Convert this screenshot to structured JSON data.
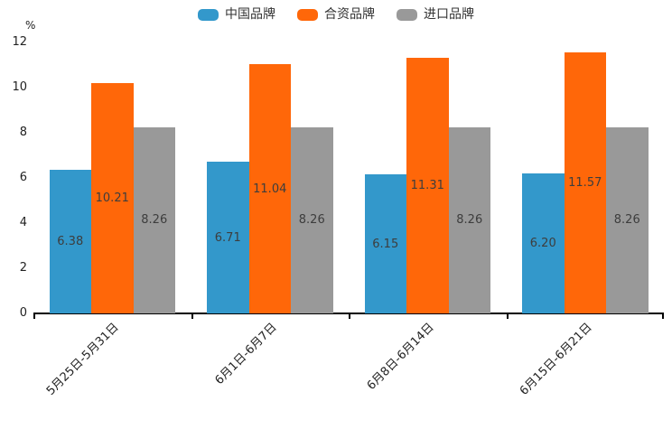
{
  "chart_data": {
    "type": "bar",
    "title": "",
    "xlabel": "",
    "ylabel": "%",
    "ylim": [
      0,
      12
    ],
    "ytick_step": 2,
    "grid": false,
    "legend_position": "top",
    "value_label_decimals": 2,
    "categories": [
      "5月25日-5月31日",
      "6月1日-6月7日",
      "6月8日-6月14日",
      "6月15日-6月21日"
    ],
    "series": [
      {
        "name": "中国品牌",
        "color": "#3398cb",
        "values": [
          6.38,
          6.71,
          6.15,
          6.2
        ]
      },
      {
        "name": "合资品牌",
        "color": "#ff6709",
        "values": [
          10.21,
          11.04,
          11.31,
          11.57
        ]
      },
      {
        "name": "进口品牌",
        "color": "#999999",
        "values": [
          8.26,
          8.26,
          8.26,
          8.26
        ]
      }
    ],
    "colors": {
      "axis": "#000000",
      "tick_label": "#222222",
      "value_label": "#3d3d3d",
      "background": "#ffffff"
    }
  }
}
